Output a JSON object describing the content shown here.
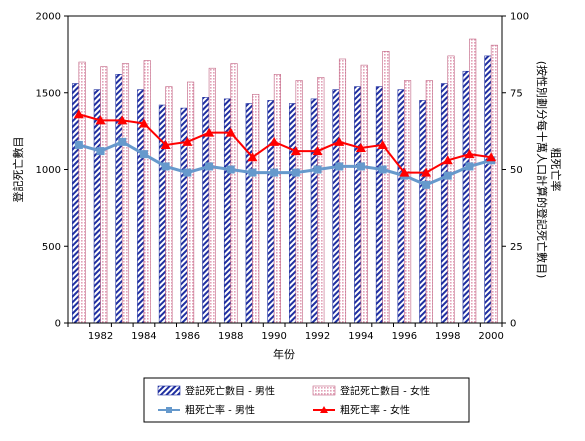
{
  "chart_data": {
    "type": "bar+line",
    "categories": [
      "1981",
      "1982",
      "1983",
      "1984",
      "1985",
      "1986",
      "1987",
      "1988",
      "1989",
      "1990",
      "1991",
      "1992",
      "1993",
      "1994",
      "1995",
      "1996",
      "1997",
      "1998",
      "1999",
      "2000"
    ],
    "x_tick_labels": [
      "1982",
      "1984",
      "1986",
      "1988",
      "1990",
      "1992",
      "1994",
      "1996",
      "1998",
      "2000"
    ],
    "xlabel": "年份",
    "ylabel_left": "登記死亡數目",
    "ylabel_right": "粗死亡率\n(按性別劃分每十萬人口計算的登記死亡數目)",
    "ylim_left": [
      0,
      2000
    ],
    "yticks_left": [
      0,
      500,
      1000,
      1500,
      2000
    ],
    "ylim_right": [
      0,
      100
    ],
    "yticks_right": [
      0,
      25,
      50,
      75,
      100
    ],
    "grid": false,
    "legend_position": "bottom",
    "series": [
      {
        "name": "登記死亡數目 - 男性",
        "kind": "bar",
        "axis": "left",
        "color": "#1f2fa0",
        "values": [
          1560,
          1520,
          1620,
          1520,
          1420,
          1400,
          1470,
          1460,
          1430,
          1450,
          1430,
          1460,
          1520,
          1540,
          1540,
          1520,
          1450,
          1560,
          1640,
          1740
        ]
      },
      {
        "name": "登記死亡數目 - 女性",
        "kind": "bar",
        "axis": "left",
        "color": "#e3a2b8",
        "values": [
          1700,
          1670,
          1690,
          1710,
          1540,
          1570,
          1660,
          1690,
          1490,
          1620,
          1580,
          1600,
          1720,
          1680,
          1770,
          1580,
          1580,
          1740,
          1850,
          1810
        ]
      },
      {
        "name": "粗死亡率 - 男性",
        "kind": "line",
        "axis": "right",
        "color": "#6699cc",
        "values": [
          58,
          56,
          59,
          55,
          51,
          49,
          51,
          50,
          49,
          49,
          49,
          50,
          51,
          51,
          50,
          48,
          45,
          48,
          51,
          53
        ]
      },
      {
        "name": "粗死亡率 - 女性",
        "kind": "line",
        "axis": "right",
        "color": "#ff0000",
        "values": [
          68,
          66,
          66,
          65,
          58,
          59,
          62,
          62,
          54,
          59,
          56,
          56,
          59,
          57,
          58,
          49,
          49,
          53,
          55,
          54
        ]
      }
    ]
  }
}
